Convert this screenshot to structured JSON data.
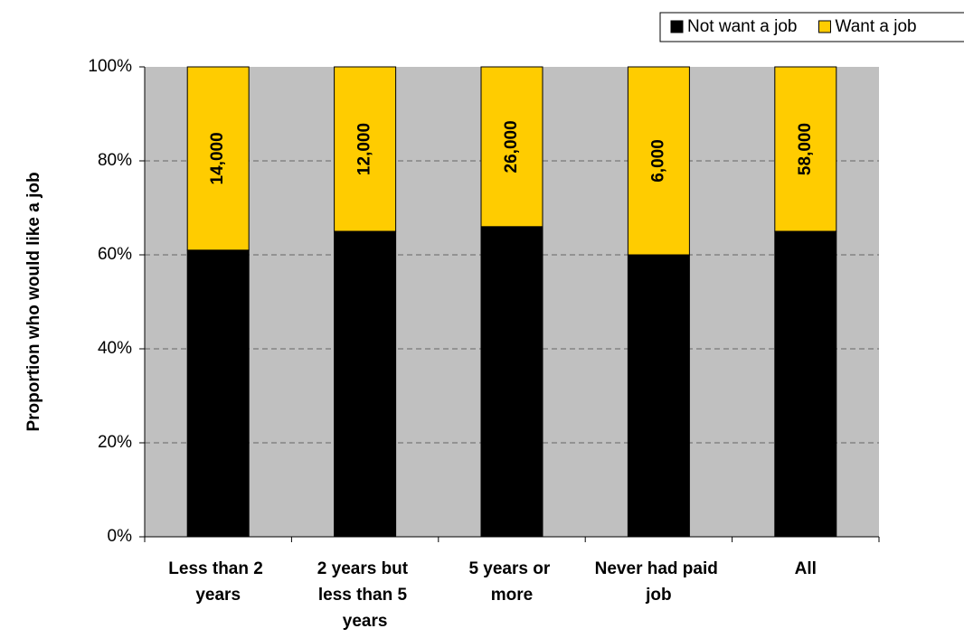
{
  "chart_data": {
    "type": "stacked_bar",
    "y_label": "Proportion who would like a job",
    "categories": [
      "Less than 2 years",
      "2 years but less than 5 years",
      "5 years or more",
      "Never had paid job",
      "All"
    ],
    "series": [
      {
        "name": "Not want a job",
        "color": "#000000",
        "values": [
          61,
          65,
          66,
          60,
          65
        ]
      },
      {
        "name": "Want a job",
        "color": "#ffcc00",
        "values": [
          39,
          35,
          34,
          40,
          35
        ],
        "data_labels": [
          "14,000",
          "12,000",
          "26,000",
          "6,000",
          "58,000"
        ]
      }
    ],
    "ylim": [
      0,
      100
    ],
    "yticks": [
      {
        "value": 0,
        "label": "0%"
      },
      {
        "value": 20,
        "label": "20%"
      },
      {
        "value": 40,
        "label": "40%"
      },
      {
        "value": 60,
        "label": "60%"
      },
      {
        "value": 80,
        "label": "80%"
      },
      {
        "value": 100,
        "label": "100%"
      }
    ],
    "grid": true,
    "legend": "top-right"
  }
}
